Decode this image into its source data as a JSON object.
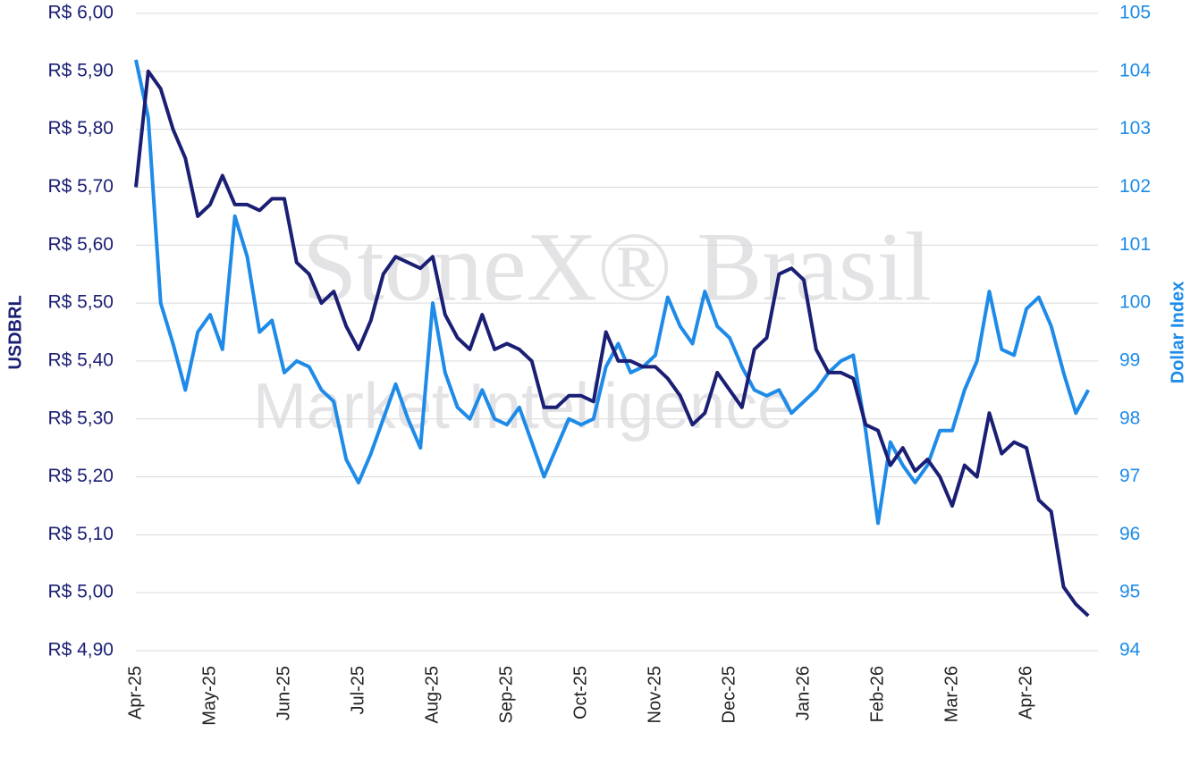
{
  "chart_data": {
    "type": "line",
    "watermark_title": "StoneX® Brasil",
    "watermark_subtitle": "Market Intelligence",
    "categories": [
      "Apr-25",
      null,
      null,
      null,
      null,
      null,
      "May-25",
      null,
      null,
      null,
      null,
      null,
      "Jun-25",
      null,
      null,
      null,
      null,
      null,
      "Jul-25",
      null,
      null,
      null,
      null,
      null,
      "Aug-25",
      null,
      null,
      null,
      null,
      null,
      "Sep-25",
      null,
      null,
      null,
      null,
      null,
      "Oct-25",
      null,
      null,
      null,
      null,
      null,
      "Nov-25",
      null,
      null,
      null,
      null,
      null,
      "Dec-25",
      null,
      null,
      null,
      null,
      null,
      "Jan-26",
      null,
      null,
      null,
      null,
      null,
      "Feb-26",
      null,
      null,
      null,
      null,
      null,
      "Mar-26",
      null,
      null,
      null,
      null,
      null,
      "Apr-26",
      null,
      null,
      null,
      null,
      null
    ],
    "series": [
      {
        "name": "USDBRL",
        "color": "#1b1f74",
        "axis": "y",
        "values": [
          5.7,
          5.9,
          5.87,
          5.8,
          5.75,
          5.65,
          5.67,
          5.72,
          5.67,
          5.67,
          5.66,
          5.68,
          5.68,
          5.57,
          5.55,
          5.5,
          5.52,
          5.46,
          5.42,
          5.47,
          5.55,
          5.58,
          5.57,
          5.56,
          5.58,
          5.48,
          5.44,
          5.42,
          5.48,
          5.42,
          5.43,
          5.42,
          5.4,
          5.32,
          5.32,
          5.34,
          5.34,
          5.33,
          5.45,
          5.4,
          5.4,
          5.39,
          5.39,
          5.37,
          5.34,
          5.29,
          5.31,
          5.38,
          5.35,
          5.32,
          5.42,
          5.44,
          5.55,
          5.56,
          5.54,
          5.42,
          5.38,
          5.38,
          5.37,
          5.29,
          5.28,
          5.22,
          5.25,
          5.21,
          5.23,
          5.2,
          5.15,
          5.22,
          5.2,
          5.31,
          5.24,
          5.26,
          5.25,
          5.16,
          5.14,
          5.01,
          4.98,
          4.96
        ]
      },
      {
        "name": "Dollar Index",
        "color": "#1e8be8",
        "axis": "y2",
        "values": [
          104.2,
          103.2,
          100.0,
          99.3,
          98.5,
          99.5,
          99.8,
          99.2,
          101.5,
          100.8,
          99.5,
          99.7,
          98.8,
          99.0,
          98.9,
          98.5,
          98.3,
          97.3,
          96.9,
          97.4,
          98.0,
          98.6,
          98.0,
          97.5,
          100.0,
          98.8,
          98.2,
          98.0,
          98.5,
          98.0,
          97.9,
          98.2,
          97.6,
          97.0,
          97.5,
          98.0,
          97.9,
          98.0,
          98.9,
          99.3,
          98.8,
          98.9,
          99.1,
          100.1,
          99.6,
          99.3,
          100.2,
          99.6,
          99.4,
          98.9,
          98.5,
          98.4,
          98.5,
          98.1,
          98.3,
          98.5,
          98.8,
          99.0,
          99.1,
          97.8,
          96.2,
          97.6,
          97.2,
          96.9,
          97.2,
          97.8,
          97.8,
          98.5,
          99.0,
          100.2,
          99.2,
          99.1,
          99.9,
          100.1,
          99.6,
          98.8,
          98.1,
          98.5
        ]
      }
    ],
    "ylim": [
      4.9,
      6.0
    ],
    "yticks": [
      {
        "value": 4.9,
        "label": "R$ 4,90"
      },
      {
        "value": 5.0,
        "label": "R$ 5,00"
      },
      {
        "value": 5.1,
        "label": "R$ 5,10"
      },
      {
        "value": 5.2,
        "label": "R$ 5,20"
      },
      {
        "value": 5.3,
        "label": "R$ 5,30"
      },
      {
        "value": 5.4,
        "label": "R$ 5,40"
      },
      {
        "value": 5.5,
        "label": "R$ 5,50"
      },
      {
        "value": 5.6,
        "label": "R$ 5,60"
      },
      {
        "value": 5.7,
        "label": "R$ 5,70"
      },
      {
        "value": 5.8,
        "label": "R$ 5,80"
      },
      {
        "value": 5.9,
        "label": "R$ 5,90"
      },
      {
        "value": 6.0,
        "label": "R$ 6,00"
      }
    ],
    "y2lim": [
      94,
      105
    ],
    "y2ticks": [
      94,
      95,
      96,
      97,
      98,
      99,
      100,
      101,
      102,
      103,
      104,
      105
    ],
    "grid": true
  }
}
